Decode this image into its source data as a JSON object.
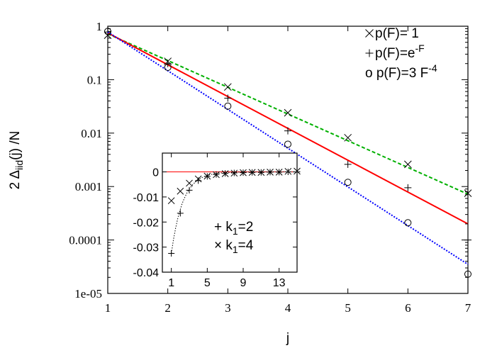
{
  "chart_data": [
    {
      "type": "line",
      "scale": {
        "y": "log"
      },
      "xlabel": "j",
      "ylabel": {
        "prefix": "2 Δ",
        "subscript": "iid",
        "suffix": "(j) /N"
      },
      "xlim": [
        1,
        7
      ],
      "ylim": [
        1e-05,
        1
      ],
      "xticks": [
        "1",
        "2",
        "3",
        "4",
        "5",
        "6",
        "7"
      ],
      "yticks": [
        {
          "value": 1,
          "label": "1"
        },
        {
          "value": 0.1,
          "label": "0.1"
        },
        {
          "value": 0.01,
          "label": "0.01"
        },
        {
          "value": 0.001,
          "label": "0.001"
        },
        {
          "value": 0.0001,
          "label": "0.0001"
        },
        {
          "value": 1e-05,
          "label": "1e-05"
        }
      ],
      "grid": false,
      "legend_position": "top-right",
      "series": [
        {
          "marker": "x",
          "name_base": "p(F)= 1",
          "name_sup": "",
          "color": "#00b000",
          "line_style": "dashed",
          "points": [
            [
              1,
              0.68
            ],
            [
              2,
              0.22
            ],
            [
              3,
              0.073
            ],
            [
              4,
              0.024
            ],
            [
              5,
              0.0082
            ],
            [
              6,
              0.0026
            ],
            [
              7,
              0.00075
            ]
          ],
          "fit": [
            [
              1,
              0.72
            ],
            [
              7,
              0.00072
            ]
          ]
        },
        {
          "marker": "+",
          "name_base": "p(F)=e",
          "name_sup": "-F",
          "color": "#ff0000",
          "line_style": "solid",
          "points": [
            [
              1,
              0.78
            ],
            [
              2,
              0.2
            ],
            [
              3,
              0.045
            ],
            [
              4,
              0.011
            ],
            [
              5,
              0.0026
            ],
            [
              6,
              0.00095
            ],
            [
              7,
              0.0001
            ]
          ],
          "fit": [
            [
              1,
              0.75
            ],
            [
              7,
              0.0002
            ]
          ]
        },
        {
          "marker": "o",
          "name_base": "o p(F)=3 F",
          "name_sup": "-4",
          "color": "#0000ff",
          "line_style": "dotted",
          "points": [
            [
              1,
              0.8
            ],
            [
              2,
              0.17
            ],
            [
              3,
              0.032
            ],
            [
              4,
              0.0062
            ],
            [
              5,
              0.0012
            ],
            [
              6,
              0.00021
            ],
            [
              7,
              2.3e-05
            ]
          ],
          "fit": [
            [
              1,
              0.78
            ],
            [
              7,
              3.5e-05
            ]
          ]
        }
      ]
    },
    {
      "type": "line",
      "inset": true,
      "xlim": [
        0,
        15
      ],
      "ylim": [
        -0.04,
        0.0075
      ],
      "xticks": [
        "1",
        "5",
        "9",
        "13"
      ],
      "yticks": [
        "0",
        "-0.01",
        "-0.02",
        "-0.03",
        "-0.04"
      ],
      "ytick_values": [
        0,
        -0.01,
        -0.02,
        -0.03,
        -0.04
      ],
      "xtick_values": [
        1,
        5,
        9,
        13
      ],
      "reference_line": {
        "y": 0,
        "color": "#ff0000"
      },
      "legend_position": "bottom-right",
      "series": [
        {
          "marker": "+",
          "name_base": "+ k",
          "name_sub": "1",
          "name_suffix": "=2",
          "points": [
            [
              1,
              -0.0325
            ],
            [
              2,
              -0.0165
            ],
            [
              3,
              -0.0073
            ],
            [
              4,
              -0.0035
            ],
            [
              5,
              -0.0018
            ],
            [
              6,
              -0.001
            ],
            [
              7,
              -0.0006
            ],
            [
              8,
              -0.0004
            ],
            [
              9,
              -0.0003
            ],
            [
              10,
              -0.0002
            ],
            [
              11,
              -0.0002
            ],
            [
              12,
              -0.0001
            ],
            [
              13,
              -0.0001
            ],
            [
              14,
              0.0
            ],
            [
              15,
              0.0
            ]
          ],
          "curve": "dotted"
        },
        {
          "marker": "x",
          "name_base": "× k",
          "name_sub": "1",
          "name_suffix": "=4",
          "points": [
            [
              1,
              -0.0115
            ],
            [
              2,
              -0.0077
            ],
            [
              3,
              -0.0045
            ],
            [
              4,
              -0.0028
            ],
            [
              5,
              -0.0017
            ],
            [
              6,
              -0.0011
            ],
            [
              7,
              -0.0007
            ],
            [
              8,
              -0.0005
            ],
            [
              9,
              -0.0003
            ],
            [
              10,
              -0.0002
            ],
            [
              11,
              -0.0002
            ],
            [
              12,
              -0.0001
            ],
            [
              13,
              -0.0001
            ],
            [
              14,
              0.0002
            ],
            [
              15,
              0.0003
            ]
          ],
          "curve": "none"
        }
      ]
    }
  ]
}
